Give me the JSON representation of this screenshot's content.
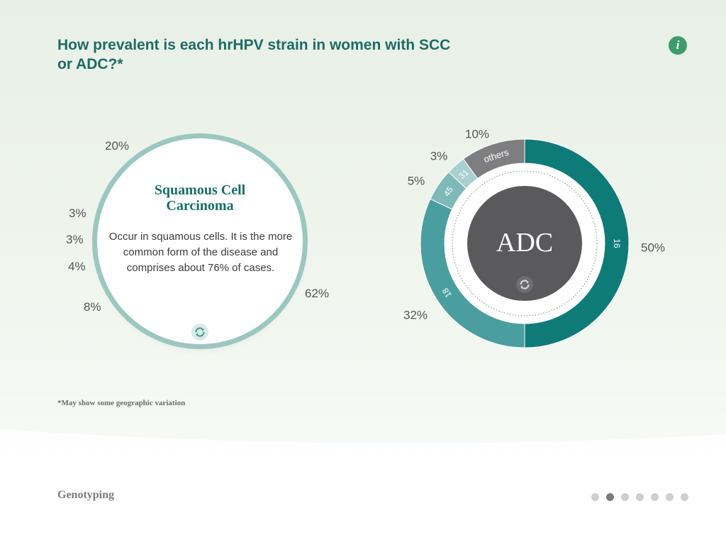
{
  "page": {
    "title": "How prevalent is each hrHPV strain in women with SCC or ADC?*",
    "info_icon": "info-icon",
    "info_glyph": "i",
    "footnote": "*May show some geographic variation",
    "section": "Genotyping",
    "page_count": 7,
    "active_page": 2
  },
  "scc": {
    "title_line1": "Squamous Cell",
    "title_line2": "Carcinoma",
    "description": "Occur in squamous cells. It is the more common form of the disease and comprises about 76% of cases.",
    "flip_icon": "flip-icon",
    "labels": [
      "20%",
      "3%",
      "3%",
      "4%",
      "8%",
      "62%"
    ]
  },
  "adc": {
    "center_label": "ADC",
    "flip_icon": "flip-icon"
  },
  "colors": {
    "title": "#1e6b66",
    "teal_dark": "#0f7b78",
    "teal_mid": "#4b9e9f",
    "teal_light": "#7fb9b9",
    "teal_pale": "#a9cfcf",
    "gray_segment": "#7e7e80",
    "center_gray": "#5a5a5c",
    "info_green": "#3e9b6b"
  },
  "chart_data": {
    "type": "pie",
    "variant": "donut",
    "segments": [
      {
        "strain": "16",
        "value": 50,
        "label": "50%",
        "color": "#0f7b78"
      },
      {
        "strain": "18",
        "value": 32,
        "label": "32%",
        "color": "#4b9e9f"
      },
      {
        "strain": "45",
        "value": 5,
        "label": "5%",
        "color": "#7fb9b9"
      },
      {
        "strain": "31",
        "value": 3,
        "label": "3%",
        "color": "#a9cfcf"
      },
      {
        "strain": "others",
        "value": 10,
        "label": "10%",
        "color": "#7e7e80"
      }
    ],
    "center_label": "ADC",
    "start": "top",
    "direction": "clockwise"
  }
}
